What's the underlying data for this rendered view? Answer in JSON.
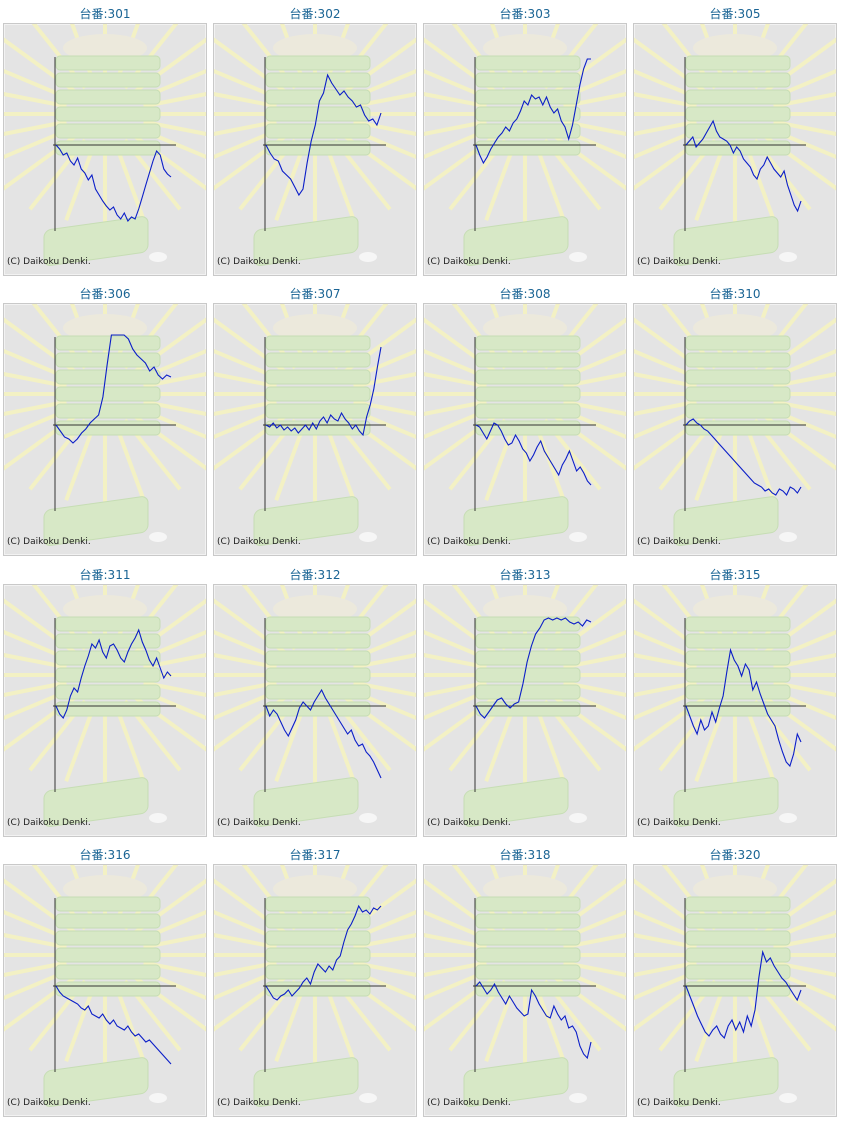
{
  "copyright": "(C) Daikoku Denki.",
  "colors": {
    "line": "#0b1ec8",
    "axis": "#333333",
    "title": "#1a6494",
    "panel_bg": "#e4e4e4"
  },
  "chart_data": [
    {
      "type": "line",
      "title": "台番:301",
      "ylim": [
        -88,
        88
      ],
      "values": [
        0,
        -4,
        -10,
        -8,
        -16,
        -20,
        -13,
        -24,
        -28,
        -35,
        -30,
        -44,
        -50,
        -56,
        -61,
        -65,
        -62,
        -70,
        -74,
        -68,
        -76,
        -72,
        -74,
        -64,
        -52,
        -40,
        -28,
        -16,
        -6,
        -10,
        -24,
        -29,
        -32
      ]
    },
    {
      "type": "line",
      "title": "台番:302",
      "ylim": [
        -88,
        88
      ],
      "values": [
        0,
        -8,
        -14,
        -16,
        -26,
        -30,
        -34,
        -42,
        -50,
        -44,
        -18,
        4,
        20,
        44,
        52,
        70,
        62,
        56,
        50,
        54,
        48,
        44,
        38,
        40,
        30,
        24,
        26,
        20,
        32
      ]
    },
    {
      "type": "line",
      "title": "台番:303",
      "ylim": [
        -88,
        88
      ],
      "values": [
        0,
        -10,
        -18,
        -12,
        -4,
        2,
        8,
        12,
        18,
        14,
        22,
        26,
        34,
        44,
        40,
        50,
        46,
        48,
        40,
        48,
        38,
        32,
        36,
        24,
        18,
        6,
        20,
        40,
        60,
        76,
        86,
        86
      ]
    },
    {
      "type": "line",
      "title": "台番:305",
      "ylim": [
        -88,
        88
      ],
      "values": [
        0,
        4,
        8,
        -2,
        2,
        6,
        12,
        18,
        24,
        14,
        8,
        6,
        4,
        0,
        -8,
        -2,
        -6,
        -14,
        -18,
        -22,
        -30,
        -34,
        -24,
        -20,
        -12,
        -18,
        -24,
        -28,
        -32,
        -26,
        -40,
        -50,
        -60,
        -66,
        -56
      ]
    },
    {
      "type": "line",
      "title": "台番:306",
      "ylim": [
        -88,
        88
      ],
      "values": [
        0,
        -6,
        -12,
        -14,
        -18,
        -14,
        -8,
        -4,
        2,
        6,
        10,
        28,
        60,
        90,
        90,
        90,
        90,
        86,
        76,
        70,
        66,
        62,
        54,
        58,
        50,
        46,
        50,
        48
      ]
    },
    {
      "type": "line",
      "title": "台番:307",
      "ylim": [
        -88,
        88
      ],
      "values": [
        0,
        -2,
        2,
        -3,
        0,
        -5,
        -2,
        -6,
        -3,
        -8,
        -4,
        0,
        -5,
        2,
        -4,
        4,
        8,
        2,
        10,
        6,
        4,
        12,
        6,
        2,
        -4,
        0,
        -6,
        -10,
        8,
        20,
        36,
        58,
        78
      ]
    },
    {
      "type": "line",
      "title": "台番:308",
      "ylim": [
        -88,
        88
      ],
      "values": [
        0,
        -2,
        -8,
        -14,
        -6,
        2,
        0,
        -6,
        -14,
        -20,
        -18,
        -10,
        -16,
        -24,
        -28,
        -36,
        -30,
        -22,
        -16,
        -26,
        -32,
        -38,
        -44,
        -50,
        -40,
        -34,
        -26,
        -36,
        -46,
        -42,
        -48,
        -56,
        -60
      ]
    },
    {
      "type": "line",
      "title": "台番:310",
      "ylim": [
        -88,
        88
      ],
      "values": [
        0,
        4,
        6,
        2,
        0,
        -4,
        -6,
        -10,
        -14,
        -18,
        -22,
        -26,
        -30,
        -34,
        -38,
        -42,
        -46,
        -50,
        -54,
        -58,
        -60,
        -62,
        -66,
        -64,
        -68,
        -70,
        -64,
        -66,
        -70,
        -62,
        -64,
        -68,
        -62
      ]
    },
    {
      "type": "line",
      "title": "台番:311",
      "ylim": [
        -88,
        88
      ],
      "values": [
        0,
        -8,
        -12,
        -4,
        10,
        18,
        14,
        28,
        40,
        50,
        62,
        58,
        66,
        54,
        48,
        60,
        62,
        56,
        48,
        44,
        54,
        62,
        68,
        76,
        64,
        56,
        46,
        40,
        48,
        38,
        28,
        34,
        30
      ]
    },
    {
      "type": "line",
      "title": "台番:312",
      "ylim": [
        -88,
        88
      ],
      "values": [
        0,
        -10,
        -4,
        -8,
        -16,
        -24,
        -30,
        -22,
        -14,
        -2,
        4,
        0,
        -4,
        4,
        10,
        16,
        8,
        2,
        -4,
        -10,
        -16,
        -22,
        -28,
        -24,
        -34,
        -40,
        -38,
        -46,
        -50,
        -56,
        -64,
        -72
      ]
    },
    {
      "type": "line",
      "title": "台番:313",
      "ylim": [
        -88,
        88
      ],
      "values": [
        0,
        -8,
        -12,
        -6,
        0,
        6,
        8,
        2,
        -2,
        2,
        4,
        22,
        44,
        60,
        72,
        78,
        86,
        88,
        86,
        88,
        86,
        88,
        84,
        82,
        84,
        80,
        86,
        84
      ]
    },
    {
      "type": "line",
      "title": "台番:315",
      "ylim": [
        -88,
        88
      ],
      "values": [
        0,
        -10,
        -20,
        -28,
        -14,
        -24,
        -20,
        -6,
        -16,
        -2,
        10,
        34,
        56,
        46,
        40,
        30,
        42,
        36,
        16,
        24,
        12,
        2,
        -8,
        -14,
        -20,
        -34,
        -46,
        -56,
        -60,
        -48,
        -28,
        -36
      ]
    },
    {
      "type": "line",
      "title": "台番:316",
      "ylim": [
        -88,
        88
      ],
      "values": [
        0,
        -6,
        -10,
        -12,
        -14,
        -16,
        -18,
        -22,
        -24,
        -20,
        -28,
        -30,
        -32,
        -28,
        -34,
        -38,
        -34,
        -40,
        -42,
        -44,
        -40,
        -46,
        -50,
        -48,
        -52,
        -56,
        -54,
        -58,
        -62,
        -66,
        -70,
        -74,
        -78
      ]
    },
    {
      "type": "line",
      "title": "台番:317",
      "ylim": [
        -88,
        88
      ],
      "values": [
        0,
        -6,
        -12,
        -14,
        -10,
        -8,
        -4,
        -10,
        -6,
        -2,
        4,
        8,
        2,
        14,
        22,
        18,
        14,
        20,
        16,
        26,
        30,
        44,
        56,
        62,
        70,
        80,
        74,
        76,
        72,
        78,
        76,
        80
      ]
    },
    {
      "type": "line",
      "title": "台番:318",
      "ylim": [
        -88,
        88
      ],
      "values": [
        0,
        4,
        -2,
        -8,
        -4,
        2,
        -6,
        -12,
        -18,
        -10,
        -16,
        -22,
        -26,
        -30,
        -28,
        -4,
        -10,
        -18,
        -24,
        -30,
        -32,
        -20,
        -28,
        -34,
        -30,
        -42,
        -40,
        -46,
        -60,
        -68,
        -72,
        -56
      ]
    },
    {
      "type": "line",
      "title": "台番:320",
      "ylim": [
        -88,
        88
      ],
      "values": [
        0,
        -10,
        -20,
        -30,
        -38,
        -46,
        -50,
        -44,
        -40,
        -48,
        -52,
        -40,
        -34,
        -44,
        -36,
        -46,
        -30,
        -40,
        -24,
        8,
        34,
        24,
        28,
        20,
        14,
        8,
        4,
        -2,
        -8,
        -14,
        -4
      ]
    }
  ]
}
